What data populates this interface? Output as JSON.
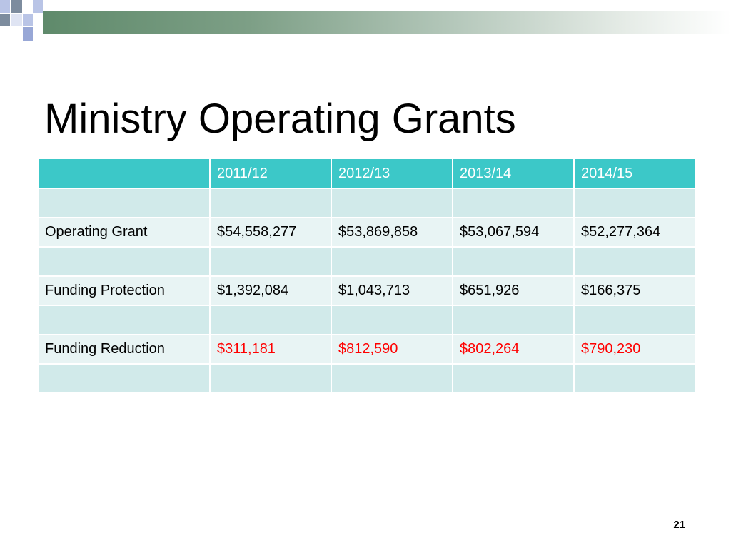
{
  "slide": {
    "title": "Ministry Operating Grants",
    "page_number": "21"
  },
  "table": {
    "headers": [
      "",
      "2011/12",
      "2012/13",
      "2013/14",
      "2014/15"
    ],
    "rows": [
      [
        "",
        "",
        "",
        "",
        ""
      ],
      [
        "Operating Grant",
        "$54,558,277",
        "$53,869,858",
        "$53,067,594",
        "$52,277,364"
      ],
      [
        "",
        "",
        "",
        "",
        ""
      ],
      [
        "Funding Protection",
        "$1,392,084",
        "$1,043,713",
        "$651,926",
        "$166,375"
      ],
      [
        "",
        "",
        "",
        "",
        ""
      ],
      [
        "Funding Reduction",
        "$311,181",
        "$812,590",
        "$802,264",
        "$790,230"
      ],
      [
        "",
        "",
        "",
        "",
        ""
      ]
    ]
  },
  "colors": {
    "header_bg": "#3cc8c8",
    "row_dark": "#d1eaea",
    "row_light": "#e8f4f4",
    "negative_text": "#ff0000"
  }
}
